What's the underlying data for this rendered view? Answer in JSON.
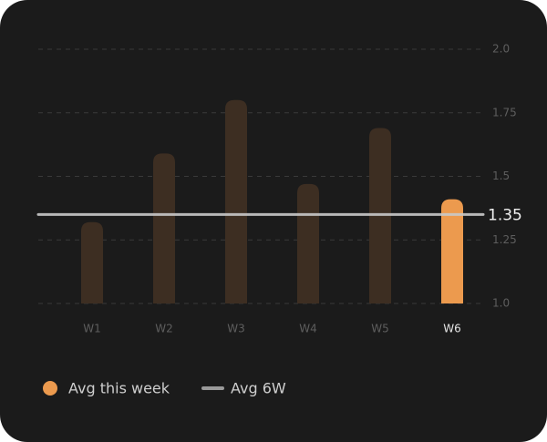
{
  "chart_data": {
    "type": "bar",
    "categories": [
      "W1",
      "W2",
      "W3",
      "W4",
      "W5",
      "W6"
    ],
    "values": [
      1.32,
      1.59,
      1.8,
      1.47,
      1.69,
      1.41
    ],
    "bar_colors": [
      "#3d2e22",
      "#3d2e22",
      "#3d2e22",
      "#3d2e22",
      "#3d2e22",
      "#ec9a4e"
    ],
    "ylim": [
      1.0,
      2.0
    ],
    "yticks": [
      {
        "value": 1.0,
        "label": "1.0"
      },
      1.25,
      1.5,
      1.75,
      {
        "value": 2.0,
        "label": "2.0"
      }
    ],
    "grid": true,
    "reference_line": {
      "value": 1.35,
      "color": "#c9c9c9"
    },
    "legend": [
      {
        "label": "Avg this week",
        "color": "#ec9a4e"
      },
      {
        "label": "Avg 6W",
        "color": "#9a9a9a"
      }
    ]
  }
}
